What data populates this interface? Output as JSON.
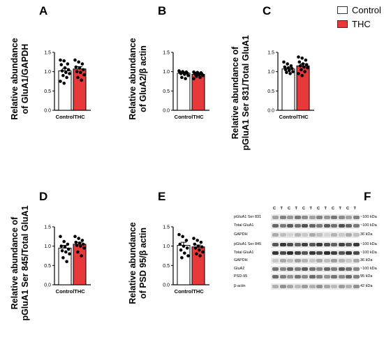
{
  "legend": {
    "control_label": "Control",
    "thc_label": "THC",
    "control_color": "#ffffff",
    "thc_color": "#e8393a"
  },
  "panels": {
    "A": {
      "letter": "A",
      "ylabel_line1": "Relative abundance",
      "ylabel_line2": "of GluA1/GAPDH"
    },
    "B": {
      "letter": "B",
      "ylabel_line1": "Relative abundance",
      "ylabel_line2": "of GluA2/β actin"
    },
    "C": {
      "letter": "C",
      "ylabel_line1": "Relative abundance of",
      "ylabel_line2": "pGluA1  Ser 831/Total  GluA1"
    },
    "D": {
      "letter": "D",
      "ylabel_line1": "Relative abundance of",
      "ylabel_line2": "pGluA1  Ser 845/Total  GluA1"
    },
    "E": {
      "letter": "E",
      "ylabel_line1": "Relative abundance",
      "ylabel_line2": "of PSD 95/β actin"
    },
    "F": {
      "letter": "F"
    }
  },
  "chart_data": [
    {
      "id": "A",
      "type": "bar",
      "categories": [
        "Control",
        "THC"
      ],
      "values": [
        1.02,
        1.07
      ],
      "errors": [
        0.06,
        0.06
      ],
      "ylim": [
        0,
        1.5
      ],
      "yticks": [
        "0.0",
        "0.5",
        "1.0",
        "1.5"
      ],
      "points": [
        [
          1.3,
          1.28,
          1.2,
          1.18,
          1.1,
          1.05,
          1.02,
          0.98,
          0.95,
          0.9,
          0.85,
          0.75,
          0.7
        ],
        [
          1.3,
          1.25,
          1.2,
          1.12,
          1.1,
          1.05,
          1.0,
          0.98,
          0.92,
          0.85,
          0.78
        ]
      ],
      "xlabel": "",
      "ylabel": "Relative abundance of GluA1/GAPDH"
    },
    {
      "id": "B",
      "type": "bar",
      "categories": [
        "Control",
        "THC"
      ],
      "values": [
        0.96,
        0.93
      ],
      "errors": [
        0.03,
        0.02
      ],
      "ylim": [
        0,
        1.5
      ],
      "yticks": [
        "0.0",
        "0.5",
        "1.0",
        "1.5"
      ],
      "points": [
        [
          1.02,
          1.0,
          0.99,
          0.98,
          0.97,
          0.96,
          0.95,
          0.93,
          0.9,
          0.85,
          0.82
        ],
        [
          0.99,
          0.98,
          0.97,
          0.96,
          0.95,
          0.94,
          0.93,
          0.92,
          0.9,
          0.88,
          0.85,
          0.82
        ]
      ],
      "xlabel": "",
      "ylabel": "Relative abundance of GluA2/β actin"
    },
    {
      "id": "C",
      "type": "bar",
      "categories": [
        "Control",
        "THC"
      ],
      "values": [
        1.07,
        1.15
      ],
      "errors": [
        0.03,
        0.05
      ],
      "ylim": [
        0,
        1.5
      ],
      "yticks": [
        "0.0",
        "0.5",
        "1.0",
        "1.5"
      ],
      "points": [
        [
          1.25,
          1.2,
          1.15,
          1.12,
          1.1,
          1.08,
          1.05,
          1.03,
          1.0,
          0.98,
          0.95
        ],
        [
          1.38,
          1.35,
          1.3,
          1.25,
          1.2,
          1.18,
          1.15,
          1.12,
          1.1,
          1.05,
          1.0,
          0.95,
          0.9
        ]
      ],
      "xlabel": "",
      "ylabel": "Relative abundance of pGluA1 Ser 831/Total GluA1"
    },
    {
      "id": "D",
      "type": "bar",
      "categories": [
        "Control",
        "THC"
      ],
      "values": [
        0.95,
        1.05
      ],
      "errors": [
        0.07,
        0.05
      ],
      "ylim": [
        0,
        1.5
      ],
      "yticks": [
        "0.0",
        "0.5",
        "1.0",
        "1.5"
      ],
      "points": [
        [
          1.25,
          1.12,
          1.05,
          1.0,
          0.98,
          0.92,
          0.88,
          0.85,
          0.8,
          0.7,
          0.6
        ],
        [
          1.25,
          1.2,
          1.15,
          1.1,
          1.08,
          1.05,
          1.02,
          1.0,
          0.95,
          0.85,
          0.75
        ]
      ],
      "xlabel": "",
      "ylabel": "Relative abundance of pGluA1 Ser 845/Total GluA1"
    },
    {
      "id": "E",
      "type": "bar",
      "categories": [
        "Control",
        "THC"
      ],
      "values": [
        1.02,
        0.98
      ],
      "errors": [
        0.08,
        0.05
      ],
      "ylim": [
        0,
        1.5
      ],
      "yticks": [
        "0.0",
        "0.5",
        "1.0",
        "1.5"
      ],
      "points": [
        [
          1.3,
          1.25,
          1.15,
          1.05,
          1.0,
          0.95,
          0.9,
          0.82,
          0.75,
          0.7
        ],
        [
          1.2,
          1.15,
          1.1,
          1.05,
          1.0,
          0.98,
          0.95,
          0.9,
          0.85,
          0.8,
          0.75
        ]
      ],
      "xlabel": "",
      "ylabel": "Relative abundance of PSD 95/β actin"
    }
  ],
  "blot": {
    "lanes": [
      "C",
      "T",
      "C",
      "T",
      "C",
      "T",
      "C",
      "T",
      "C",
      "T",
      "C",
      "T"
    ],
    "rows": [
      {
        "label": "pGluA1 Ser 831",
        "kda": "~100 kDa"
      },
      {
        "label": "Total  GluA1",
        "kda": "~100 kDa"
      },
      {
        "label": "GAPDH",
        "kda": "36 kDa"
      },
      {
        "label": "pGluA1 Ser 845",
        "kda": "~100 kDa"
      },
      {
        "label": "Total  GluA1",
        "kda": "~100 kDa"
      },
      {
        "label": "GAPDH",
        "kda": "36 kDa"
      },
      {
        "label": "GluA2",
        "kda": "~100 kDa"
      },
      {
        "label": "PSD-95",
        "kda": "95 kDa"
      },
      {
        "label": "β-actin",
        "kda": "42 kDa"
      }
    ]
  }
}
